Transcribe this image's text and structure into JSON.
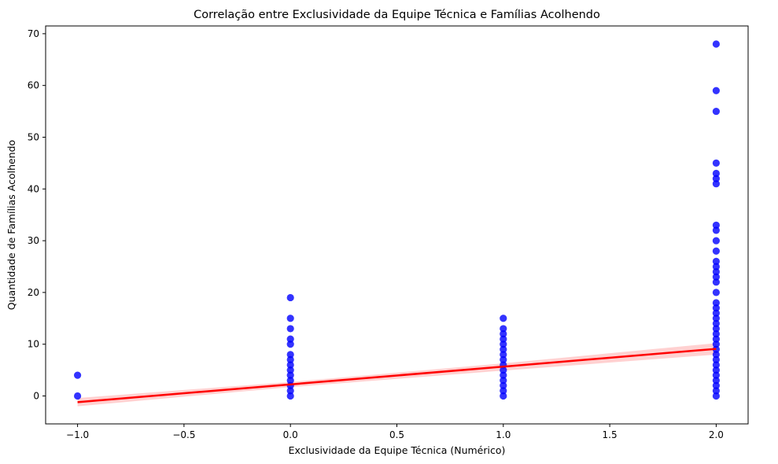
{
  "chart_data": {
    "type": "scatter",
    "title": "Correlação entre Exclusividade da Equipe Técnica e Famílias Acolhendo",
    "xlabel": "Exclusividade da Equipe Técnica (Numérico)",
    "ylabel": "Quantidade de Famílias Acolhendo",
    "xlim": [
      -1.15,
      2.15
    ],
    "ylim": [
      -5.4,
      71.5
    ],
    "xticks": [
      -1.0,
      -0.5,
      0.0,
      0.5,
      1.0,
      1.5,
      2.0
    ],
    "xtick_labels": [
      "−1.0",
      "−0.5",
      "0.0",
      "0.5",
      "1.0",
      "1.5",
      "2.0"
    ],
    "yticks": [
      0,
      10,
      20,
      30,
      40,
      50,
      60,
      70
    ],
    "ytick_labels": [
      "0",
      "10",
      "20",
      "30",
      "40",
      "50",
      "60",
      "70"
    ],
    "grid": false,
    "point_color": "#0000ff",
    "line_color": "#ff0000",
    "ci_color": "#ffb3b3",
    "points": [
      {
        "x": -1,
        "y": [
          0,
          4
        ]
      },
      {
        "x": 0,
        "y": [
          0,
          1,
          2,
          3,
          4,
          5,
          6,
          7,
          8,
          10,
          11,
          13,
          15,
          19
        ]
      },
      {
        "x": 1,
        "y": [
          0,
          1,
          2,
          3,
          4,
          5,
          6,
          7,
          8,
          9,
          10,
          11,
          12,
          13,
          15
        ]
      },
      {
        "x": 2,
        "y": [
          0,
          1,
          2,
          3,
          4,
          5,
          6,
          7,
          8,
          9,
          10,
          11,
          12,
          13,
          14,
          15,
          16,
          17,
          18,
          20,
          22,
          23,
          24,
          25,
          26,
          28,
          30,
          32,
          33,
          41,
          42,
          43,
          45,
          55,
          59,
          68
        ]
      }
    ],
    "regression": {
      "x": [
        -1,
        2
      ],
      "y": [
        -1.2,
        9.1
      ]
    },
    "ci_band": {
      "x": [
        -1,
        0,
        1,
        2
      ],
      "lower": [
        -2.0,
        1.7,
        4.9,
        8.0
      ],
      "upper": [
        -0.4,
        2.7,
        6.3,
        10.2
      ]
    }
  }
}
